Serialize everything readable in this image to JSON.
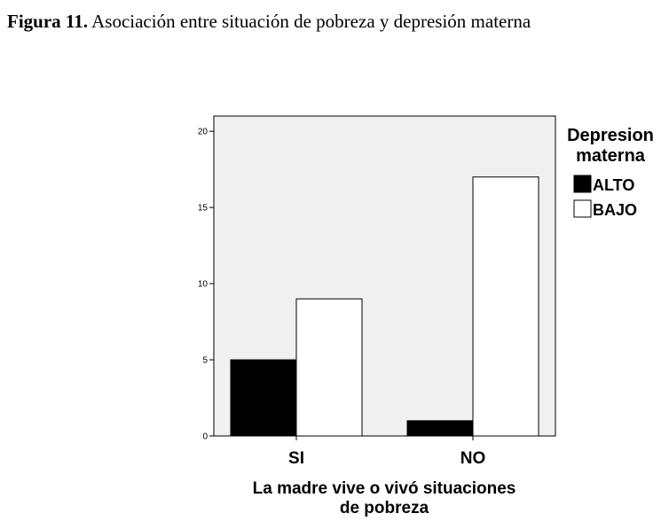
{
  "figure": {
    "label": "Figura 11.",
    "text": "Asociación entre situación de pobreza y depresión materna"
  },
  "chart_data": {
    "type": "bar",
    "categories": [
      "SI",
      "NO"
    ],
    "series": [
      {
        "name": "ALTO",
        "values": [
          5,
          1
        ],
        "color": "#000000"
      },
      {
        "name": "BAJO",
        "values": [
          9,
          17
        ],
        "color": "#ffffff"
      }
    ],
    "xlabel": [
      "La madre vive o vivó situaciones",
      "de pobreza"
    ],
    "ylabel": "",
    "ylim": [
      0,
      21
    ],
    "yticks": [
      0,
      5,
      10,
      15,
      20
    ],
    "legend": {
      "title": [
        "Depresion",
        "materna"
      ],
      "placement": "right"
    },
    "background": "#f0f0f0"
  }
}
